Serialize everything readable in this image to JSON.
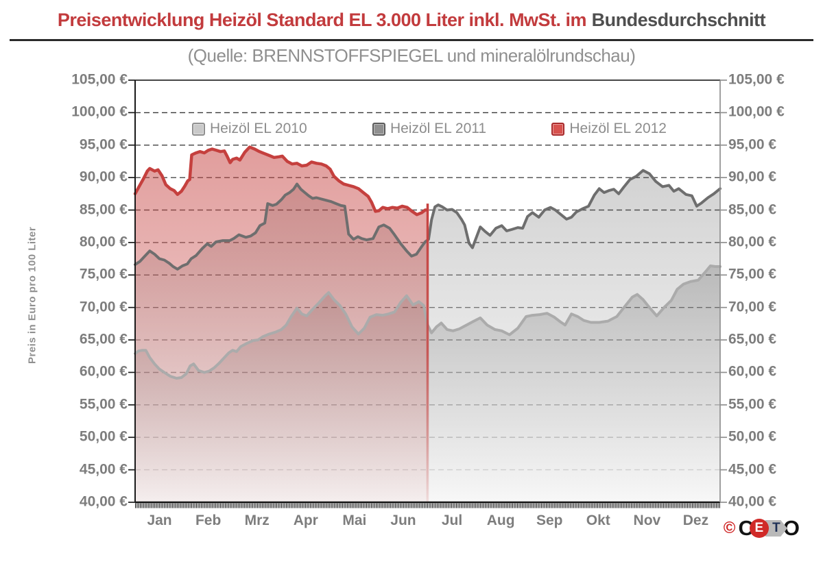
{
  "header": {
    "title_red": "Preisentwicklung Heizöl Standard EL 3.000 Liter inkl. MwSt. im",
    "title_dark": "Bundesdurchschnitt",
    "subtitle": "(Quelle: BRENNSTOFFSPIEGEL und mineralölrundschau)"
  },
  "colors": {
    "title_red": "#c23b3d",
    "title_gray": "#4f4f4f",
    "axis_text_gray": "#7d7d7d",
    "grid_dark": "#2e2e2e",
    "right_spine_gray": "#8f8f8f",
    "series_2010": "#ababab",
    "series_2011": "#6e6e6e",
    "series_2012": "#c5403e"
  },
  "legend": {
    "entries": [
      {
        "label": "Heizöl EL 2010",
        "swatch_fill": "#c9c9c9",
        "swatch_border": "#909090"
      },
      {
        "label": "Heizöl EL 2011",
        "swatch_fill": "#909090",
        "swatch_border": "#5a5a5a"
      },
      {
        "label": "Heizöl EL 2012",
        "swatch_fill": "#d8524e",
        "swatch_border": "#a8292a"
      }
    ]
  },
  "logo": {
    "copyright": "©",
    "letters": [
      "C",
      "E",
      "T",
      "O"
    ],
    "brand": "CETO"
  },
  "chart_data": {
    "type": "area",
    "title": "Preisentwicklung Heizöl Standard EL 3.000 Liter inkl. MwSt. im Bundesdurchschnitt",
    "source_note": "(Quelle: BRENNSTOFFSPIEGEL und mineralölrundschau)",
    "ylabel": "Preis in Euro pro 100 Liter",
    "ylim": [
      40,
      105
    ],
    "y_tick_step": 5,
    "y_ticks_labels": [
      "105,00 €",
      "100,00 €",
      "95,00 €",
      "90,00 €",
      "85,00 €",
      "80,00 €",
      "75,00 €",
      "70,00 €",
      "65,00 €",
      "60,00 €",
      "55,00 €",
      "50,00 €",
      "45,00 €",
      "40,00 €"
    ],
    "x_categories": [
      "Jan",
      "Feb",
      "Mrz",
      "Apr",
      "Mai",
      "Jun",
      "Jul",
      "Aug",
      "Sep",
      "Okt",
      "Nov",
      "Dez"
    ],
    "x_unit": "month index 0-12, fractional part = position within month",
    "grid": "horizontal dashed, solid top line",
    "legend_position": "top inside plot",
    "series": [
      {
        "name": "Heizöl EL 2010",
        "color": "#ababab",
        "points": [
          [
            0,
            62.9
          ],
          [
            0.07,
            63.3
          ],
          [
            0.15,
            63.4
          ],
          [
            0.22,
            63.4
          ],
          [
            0.3,
            62.3
          ],
          [
            0.4,
            61.3
          ],
          [
            0.5,
            60.5
          ],
          [
            0.6,
            60
          ],
          [
            0.72,
            59.4
          ],
          [
            0.85,
            59.1
          ],
          [
            0.95,
            59.2
          ],
          [
            1.05,
            59.8
          ],
          [
            1.13,
            61
          ],
          [
            1.2,
            61.3
          ],
          [
            1.3,
            60.3
          ],
          [
            1.42,
            60
          ],
          [
            1.52,
            60.2
          ],
          [
            1.62,
            60.7
          ],
          [
            1.72,
            61.4
          ],
          [
            1.82,
            62.2
          ],
          [
            1.92,
            63
          ],
          [
            2,
            63.4
          ],
          [
            2.08,
            63.2
          ],
          [
            2.17,
            64
          ],
          [
            2.3,
            64.5
          ],
          [
            2.42,
            64.9
          ],
          [
            2.52,
            65
          ],
          [
            2.62,
            65.5
          ],
          [
            2.75,
            65.9
          ],
          [
            2.88,
            66.2
          ],
          [
            3,
            66.6
          ],
          [
            3.1,
            67.3
          ],
          [
            3.2,
            68.6
          ],
          [
            3.32,
            69.9
          ],
          [
            3.42,
            69
          ],
          [
            3.52,
            68.7
          ],
          [
            3.65,
            69.8
          ],
          [
            3.78,
            70.8
          ],
          [
            3.9,
            71.8
          ],
          [
            3.97,
            72.3
          ],
          [
            4.08,
            71.2
          ],
          [
            4.2,
            70.3
          ],
          [
            4.32,
            69
          ],
          [
            4.45,
            67
          ],
          [
            4.58,
            65.9
          ],
          [
            4.7,
            66.8
          ],
          [
            4.82,
            68.5
          ],
          [
            4.95,
            68.9
          ],
          [
            5.08,
            68.8
          ],
          [
            5.2,
            69
          ],
          [
            5.32,
            69.3
          ],
          [
            5.45,
            70.8
          ],
          [
            5.57,
            71.8
          ],
          [
            5.7,
            70.4
          ],
          [
            5.82,
            70.9
          ],
          [
            5.92,
            70.3
          ],
          [
            6,
            67.3
          ],
          [
            6.08,
            66.1
          ],
          [
            6.18,
            67
          ],
          [
            6.28,
            67.6
          ],
          [
            6.4,
            66.6
          ],
          [
            6.52,
            66.4
          ],
          [
            6.65,
            66.7
          ],
          [
            6.8,
            67.3
          ],
          [
            6.95,
            67.9
          ],
          [
            7.08,
            68.4
          ],
          [
            7.22,
            67.3
          ],
          [
            7.38,
            66.6
          ],
          [
            7.52,
            66.4
          ],
          [
            7.68,
            65.8
          ],
          [
            7.85,
            66.8
          ],
          [
            8.02,
            68.6
          ],
          [
            8.15,
            68.8
          ],
          [
            8.3,
            68.9
          ],
          [
            8.45,
            69.1
          ],
          [
            8.6,
            68.5
          ],
          [
            8.72,
            67.8
          ],
          [
            8.82,
            67.3
          ],
          [
            8.95,
            69
          ],
          [
            9.08,
            68.6
          ],
          [
            9.2,
            68
          ],
          [
            9.35,
            67.7
          ],
          [
            9.52,
            67.7
          ],
          [
            9.7,
            67.9
          ],
          [
            9.88,
            68.6
          ],
          [
            10.05,
            70.2
          ],
          [
            10.2,
            71.6
          ],
          [
            10.3,
            72
          ],
          [
            10.42,
            71.2
          ],
          [
            10.55,
            70
          ],
          [
            10.7,
            68.7
          ],
          [
            10.85,
            70
          ],
          [
            11,
            71.1
          ],
          [
            11.12,
            72.8
          ],
          [
            11.25,
            73.6
          ],
          [
            11.4,
            74
          ],
          [
            11.55,
            74.2
          ],
          [
            11.7,
            75.5
          ],
          [
            11.8,
            76.4
          ],
          [
            11.9,
            76.3
          ],
          [
            12,
            76.3
          ]
        ]
      },
      {
        "name": "Heizöl EL 2011",
        "color": "#6e6e6e",
        "points": [
          [
            0,
            76.6
          ],
          [
            0.1,
            77.1
          ],
          [
            0.2,
            77.9
          ],
          [
            0.3,
            78.7
          ],
          [
            0.4,
            78.2
          ],
          [
            0.5,
            77.5
          ],
          [
            0.6,
            77.3
          ],
          [
            0.7,
            76.8
          ],
          [
            0.78,
            76.3
          ],
          [
            0.87,
            75.9
          ],
          [
            0.97,
            76.4
          ],
          [
            1.07,
            76.7
          ],
          [
            1.15,
            77.5
          ],
          [
            1.25,
            78
          ],
          [
            1.38,
            79.1
          ],
          [
            1.48,
            79.8
          ],
          [
            1.56,
            79.4
          ],
          [
            1.66,
            80.1
          ],
          [
            1.8,
            80.3
          ],
          [
            1.94,
            80.3
          ],
          [
            2.02,
            80.6
          ],
          [
            2.13,
            81.2
          ],
          [
            2.27,
            80.8
          ],
          [
            2.37,
            81
          ],
          [
            2.47,
            81.5
          ],
          [
            2.56,
            82.6
          ],
          [
            2.66,
            83
          ],
          [
            2.72,
            86
          ],
          [
            2.82,
            85.7
          ],
          [
            2.9,
            85.9
          ],
          [
            3,
            86.6
          ],
          [
            3.08,
            87.3
          ],
          [
            3.17,
            87.7
          ],
          [
            3.25,
            88.2
          ],
          [
            3.32,
            89
          ],
          [
            3.4,
            88.2
          ],
          [
            3.48,
            87.7
          ],
          [
            3.56,
            87.2
          ],
          [
            3.64,
            86.8
          ],
          [
            3.72,
            86.9
          ],
          [
            3.82,
            86.7
          ],
          [
            3.92,
            86.5
          ],
          [
            4.02,
            86.3
          ],
          [
            4.12,
            86
          ],
          [
            4.22,
            85.7
          ],
          [
            4.3,
            85.6
          ],
          [
            4.38,
            81.3
          ],
          [
            4.48,
            80.5
          ],
          [
            4.57,
            80.9
          ],
          [
            4.65,
            80.6
          ],
          [
            4.75,
            80.4
          ],
          [
            4.88,
            80.6
          ],
          [
            5,
            82.4
          ],
          [
            5.1,
            82.7
          ],
          [
            5.22,
            82.2
          ],
          [
            5.32,
            81.2
          ],
          [
            5.45,
            79.8
          ],
          [
            5.57,
            78.7
          ],
          [
            5.67,
            77.9
          ],
          [
            5.77,
            78.2
          ],
          [
            5.87,
            79.3
          ],
          [
            5.95,
            80.1
          ],
          [
            6.02,
            80.5
          ],
          [
            6.08,
            83.5
          ],
          [
            6.15,
            85.5
          ],
          [
            6.22,
            85.8
          ],
          [
            6.3,
            85.5
          ],
          [
            6.4,
            85
          ],
          [
            6.5,
            85.1
          ],
          [
            6.6,
            84.6
          ],
          [
            6.7,
            83.5
          ],
          [
            6.76,
            82.7
          ],
          [
            6.85,
            79.9
          ],
          [
            6.92,
            79.2
          ],
          [
            7,
            80.8
          ],
          [
            7.08,
            82.4
          ],
          [
            7.18,
            81.7
          ],
          [
            7.28,
            81.1
          ],
          [
            7.4,
            82.2
          ],
          [
            7.52,
            82.6
          ],
          [
            7.62,
            81.8
          ],
          [
            7.72,
            82
          ],
          [
            7.85,
            82.3
          ],
          [
            7.95,
            82.2
          ],
          [
            8.05,
            84
          ],
          [
            8.15,
            84.6
          ],
          [
            8.28,
            83.9
          ],
          [
            8.4,
            85
          ],
          [
            8.52,
            85.4
          ],
          [
            8.62,
            85
          ],
          [
            8.75,
            84.2
          ],
          [
            8.85,
            83.6
          ],
          [
            8.95,
            83.9
          ],
          [
            9.05,
            84.7
          ],
          [
            9.18,
            85.2
          ],
          [
            9.3,
            85.6
          ],
          [
            9.42,
            87.3
          ],
          [
            9.52,
            88.3
          ],
          [
            9.62,
            87.7
          ],
          [
            9.72,
            88
          ],
          [
            9.82,
            88.2
          ],
          [
            9.92,
            87.5
          ],
          [
            10.02,
            88.5
          ],
          [
            10.15,
            89.7
          ],
          [
            10.28,
            90.2
          ],
          [
            10.42,
            91.1
          ],
          [
            10.55,
            90.6
          ],
          [
            10.68,
            89.4
          ],
          [
            10.82,
            88.6
          ],
          [
            10.95,
            88.8
          ],
          [
            11.05,
            87.9
          ],
          [
            11.15,
            88.3
          ],
          [
            11.3,
            87.4
          ],
          [
            11.42,
            87.2
          ],
          [
            11.52,
            85.6
          ],
          [
            11.62,
            86.1
          ],
          [
            11.75,
            86.9
          ],
          [
            11.87,
            87.5
          ],
          [
            12,
            88.3
          ]
        ]
      },
      {
        "name": "Heizöl EL 2012",
        "color": "#c5403e",
        "end_marker_x": 6.0,
        "end_marker_top": 86.0,
        "points": [
          [
            0,
            87.5
          ],
          [
            0.08,
            88.6
          ],
          [
            0.17,
            89.8
          ],
          [
            0.25,
            91
          ],
          [
            0.3,
            91.4
          ],
          [
            0.4,
            91
          ],
          [
            0.47,
            91.2
          ],
          [
            0.55,
            90.3
          ],
          [
            0.63,
            88.9
          ],
          [
            0.72,
            88.3
          ],
          [
            0.8,
            88
          ],
          [
            0.87,
            87.4
          ],
          [
            0.95,
            87.9
          ],
          [
            1.02,
            88.7
          ],
          [
            1.08,
            89.5
          ],
          [
            1.12,
            89.7
          ],
          [
            1.16,
            93.5
          ],
          [
            1.25,
            93.8
          ],
          [
            1.33,
            94
          ],
          [
            1.42,
            93.8
          ],
          [
            1.5,
            94.2
          ],
          [
            1.58,
            94.4
          ],
          [
            1.67,
            94.2
          ],
          [
            1.75,
            94
          ],
          [
            1.83,
            94.1
          ],
          [
            1.88,
            93.4
          ],
          [
            1.95,
            92.3
          ],
          [
            2,
            92.8
          ],
          [
            2.08,
            93
          ],
          [
            2.15,
            92.7
          ],
          [
            2.25,
            93.9
          ],
          [
            2.35,
            94.7
          ],
          [
            2.45,
            94.4
          ],
          [
            2.55,
            94
          ],
          [
            2.65,
            93.7
          ],
          [
            2.75,
            93.4
          ],
          [
            2.85,
            93.1
          ],
          [
            2.95,
            93.2
          ],
          [
            3.02,
            93.3
          ],
          [
            3.12,
            92.5
          ],
          [
            3.22,
            92.1
          ],
          [
            3.32,
            92.2
          ],
          [
            3.42,
            91.8
          ],
          [
            3.52,
            91.9
          ],
          [
            3.62,
            92.4
          ],
          [
            3.72,
            92.2
          ],
          [
            3.82,
            92.1
          ],
          [
            3.92,
            91.8
          ],
          [
            4,
            91.3
          ],
          [
            4.08,
            90.2
          ],
          [
            4.18,
            89.5
          ],
          [
            4.28,
            89
          ],
          [
            4.38,
            88.8
          ],
          [
            4.48,
            88.6
          ],
          [
            4.58,
            88.3
          ],
          [
            4.68,
            87.7
          ],
          [
            4.78,
            87.1
          ],
          [
            4.85,
            86.2
          ],
          [
            4.93,
            84.8
          ],
          [
            5,
            84.9
          ],
          [
            5.08,
            85.4
          ],
          [
            5.18,
            85.2
          ],
          [
            5.28,
            85.4
          ],
          [
            5.38,
            85.3
          ],
          [
            5.48,
            85.6
          ],
          [
            5.58,
            85.4
          ],
          [
            5.68,
            84.8
          ],
          [
            5.78,
            84.3
          ],
          [
            5.88,
            84.6
          ],
          [
            5.95,
            85
          ],
          [
            6,
            85
          ]
        ]
      }
    ]
  }
}
